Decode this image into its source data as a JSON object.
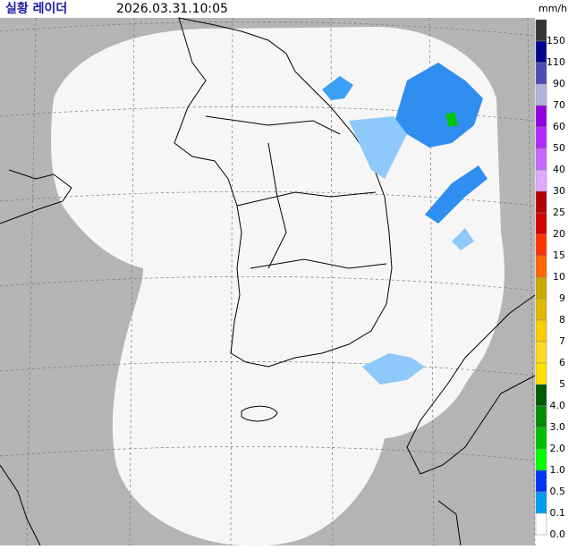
{
  "header": {
    "title": "실황 레이더",
    "timestamp": "2026.03.31.10:05",
    "unit": "mm/h"
  },
  "legend": [
    {
      "label": "150",
      "color": "#333333"
    },
    {
      "label": "110",
      "color": "#000390"
    },
    {
      "label": "90",
      "color": "#4c4eb1"
    },
    {
      "label": "70",
      "color": "#b3b4de"
    },
    {
      "label": "60",
      "color": "#9300e4"
    },
    {
      "label": "50",
      "color": "#b329ff"
    },
    {
      "label": "40",
      "color": "#c969ff"
    },
    {
      "label": "30",
      "color": "#e0a9ff"
    },
    {
      "label": "25",
      "color": "#b40000"
    },
    {
      "label": "20",
      "color": "#d20000"
    },
    {
      "label": "15",
      "color": "#ff3200"
    },
    {
      "label": "10",
      "color": "#ff6600"
    },
    {
      "label": "9",
      "color": "#ccaa00"
    },
    {
      "label": "8",
      "color": "#e0b900"
    },
    {
      "label": "7",
      "color": "#f9cd00"
    },
    {
      "label": "6",
      "color": "#ffdc1f"
    },
    {
      "label": "5",
      "color": "#ffe100"
    },
    {
      "label": "4.0",
      "color": "#005a00"
    },
    {
      "label": "3.0",
      "color": "#008c00"
    },
    {
      "label": "2.0",
      "color": "#00be00"
    },
    {
      "label": "1.0",
      "color": "#00ff00"
    },
    {
      "label": "0.5",
      "color": "#0033f5"
    },
    {
      "label": "0.1",
      "color": "#009bf5"
    },
    {
      "label": "0.0",
      "color": "#ffffff"
    }
  ]
}
